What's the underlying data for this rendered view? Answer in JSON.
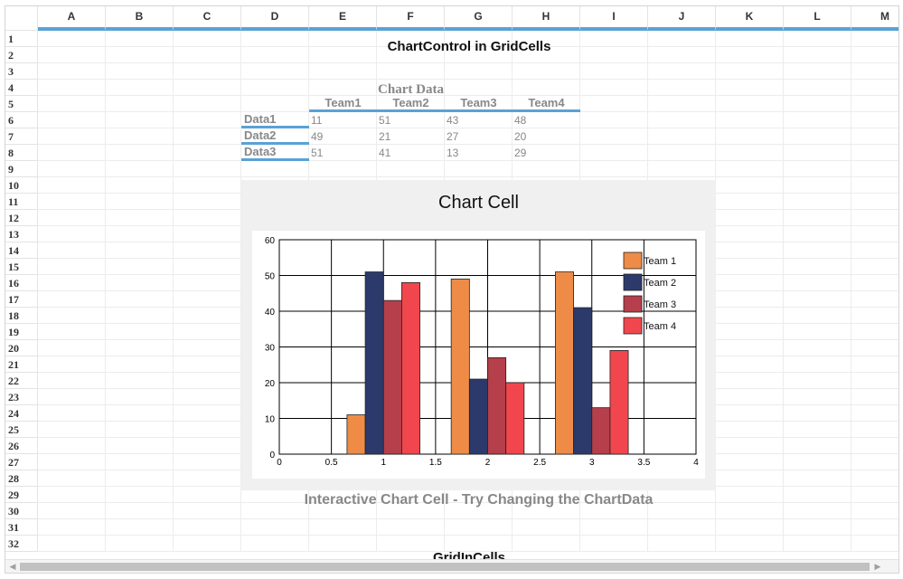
{
  "columns": [
    "A",
    "B",
    "C",
    "D",
    "E",
    "F",
    "G",
    "H",
    "I",
    "J",
    "K",
    "L",
    "M"
  ],
  "rows": [
    "1",
    "2",
    "3",
    "4",
    "5",
    "6",
    "7",
    "8",
    "9",
    "10",
    "11",
    "12",
    "13",
    "14",
    "15",
    "16",
    "17",
    "18",
    "19",
    "20",
    "21",
    "22",
    "23",
    "24",
    "25",
    "26",
    "27",
    "28",
    "29",
    "30",
    "31",
    "32"
  ],
  "sheet": {
    "title": "ChartControl in GridCells",
    "bottom_title": "GridInCells"
  },
  "chart_table": {
    "caption": "Chart Data",
    "headers": [
      "Team1",
      "Team2",
      "Team3",
      "Team4"
    ],
    "rows": [
      {
        "label": "Data1",
        "values": [
          "11",
          "51",
          "43",
          "48"
        ]
      },
      {
        "label": "Data2",
        "values": [
          "49",
          "21",
          "27",
          "20"
        ]
      },
      {
        "label": "Data3",
        "values": [
          "51",
          "41",
          "13",
          "29"
        ]
      }
    ]
  },
  "chart_cell": {
    "title": "Chart Cell",
    "caption": "Interactive Chart Cell - Try Changing the ChartData"
  },
  "chart_data": {
    "type": "bar",
    "x": [
      1,
      2,
      3
    ],
    "xlim": [
      0,
      4
    ],
    "ylim": [
      0,
      60
    ],
    "xticks": [
      "0",
      "0.5",
      "1",
      "1.5",
      "2",
      "2.5",
      "3",
      "3.5",
      "4"
    ],
    "yticks": [
      "0",
      "10",
      "20",
      "30",
      "40",
      "50",
      "60"
    ],
    "grid": true,
    "legend_position": "top-right",
    "series": [
      {
        "name": "Team 1",
        "color": "#ee8c47",
        "values": [
          11,
          49,
          51
        ]
      },
      {
        "name": "Team 2",
        "color": "#2b3a6b",
        "values": [
          51,
          21,
          41
        ]
      },
      {
        "name": "Team 3",
        "color": "#b53f4a",
        "values": [
          43,
          27,
          13
        ]
      },
      {
        "name": "Team 4",
        "color": "#f2464e",
        "values": [
          48,
          20,
          29
        ]
      }
    ]
  },
  "colors": {
    "accent": "#59a2d5",
    "header_text": "#333333",
    "muted_text": "#888888"
  }
}
